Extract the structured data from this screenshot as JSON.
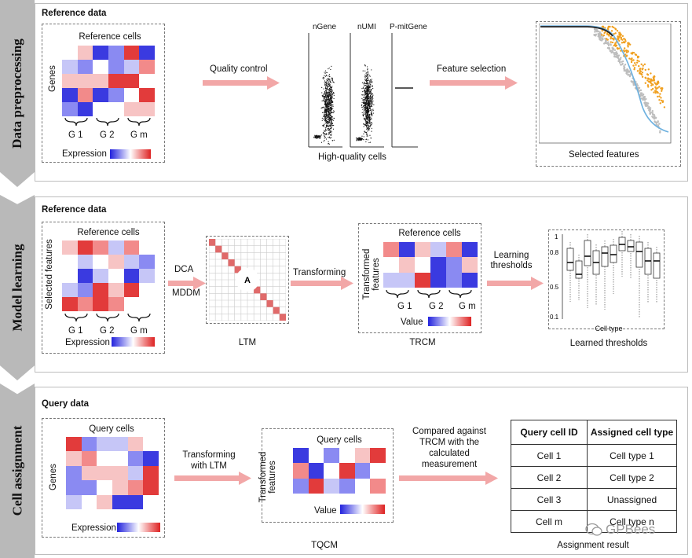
{
  "stages": {
    "s1": {
      "label": "Data preprocessing",
      "panel_title": "Reference data",
      "matrix_title": "Reference cells",
      "genes_label": "Genes",
      "groups": [
        "G 1",
        "G 2",
        "G m"
      ],
      "expression_label": "Expression",
      "arrow1": "Quality control",
      "qc_labels": [
        "nGene",
        "nUMI",
        "P-mitGene"
      ],
      "qc_caption": "High-quality cells",
      "arrow2": "Feature selection",
      "features_caption": "Selected features"
    },
    "s2": {
      "label": "Model learning",
      "panel_title": "Reference data",
      "matrix_title": "Reference cells",
      "features_label": "Selected features",
      "groups": [
        "G 1",
        "G 2",
        "G m"
      ],
      "expression_label": "Expression",
      "method1": "DCA",
      "method2": "MDDM",
      "ltm_letter": "A",
      "ltm_caption": "LTM",
      "arrow_transform": "Transforming",
      "trcm_title": "Reference cells",
      "trcm_ylabel": "Transformed features",
      "trcm_groups": [
        "G 1",
        "G 2",
        "G m"
      ],
      "value_label": "Value",
      "trcm_caption": "TRCM",
      "arrow_learning": "Learning thresholds",
      "box_y_ticks": [
        "1",
        "0.8",
        "0.5",
        "0.1"
      ],
      "box_xlabel": "Cell type",
      "box_caption": "Learned thresholds"
    },
    "s3": {
      "label": "Cell assignment",
      "panel_title": "Query data",
      "matrix_title": "Query cells",
      "genes_label": "Genes",
      "expression_label": "Expression",
      "arrow1": "Transforming with LTM",
      "tqcm_title": "Query cells",
      "tqcm_ylabel": "Transformed features",
      "value_label": "Value",
      "tqcm_caption": "TQCM",
      "arrow2": "Compared against TRCM with the calculated measurement",
      "table_headers": [
        "Query cell ID",
        "Assigned cell type"
      ],
      "table_rows": [
        [
          "Cell 1",
          "Cell type 1"
        ],
        [
          "Cell 2",
          "Cell type 2"
        ],
        [
          "Cell 3",
          "Unassigned"
        ],
        [
          "Cell m",
          "Cell type n"
        ]
      ],
      "result_caption": "Assignment result"
    }
  },
  "watermark": "GPBees",
  "colors": {
    "stage_tab": "#b9b9b9",
    "arrow": "#f2a7a7",
    "red": "#e23b3b",
    "blue": "#3a3ae0",
    "orange": "#f0a020",
    "curve": "#6fb2e0"
  }
}
